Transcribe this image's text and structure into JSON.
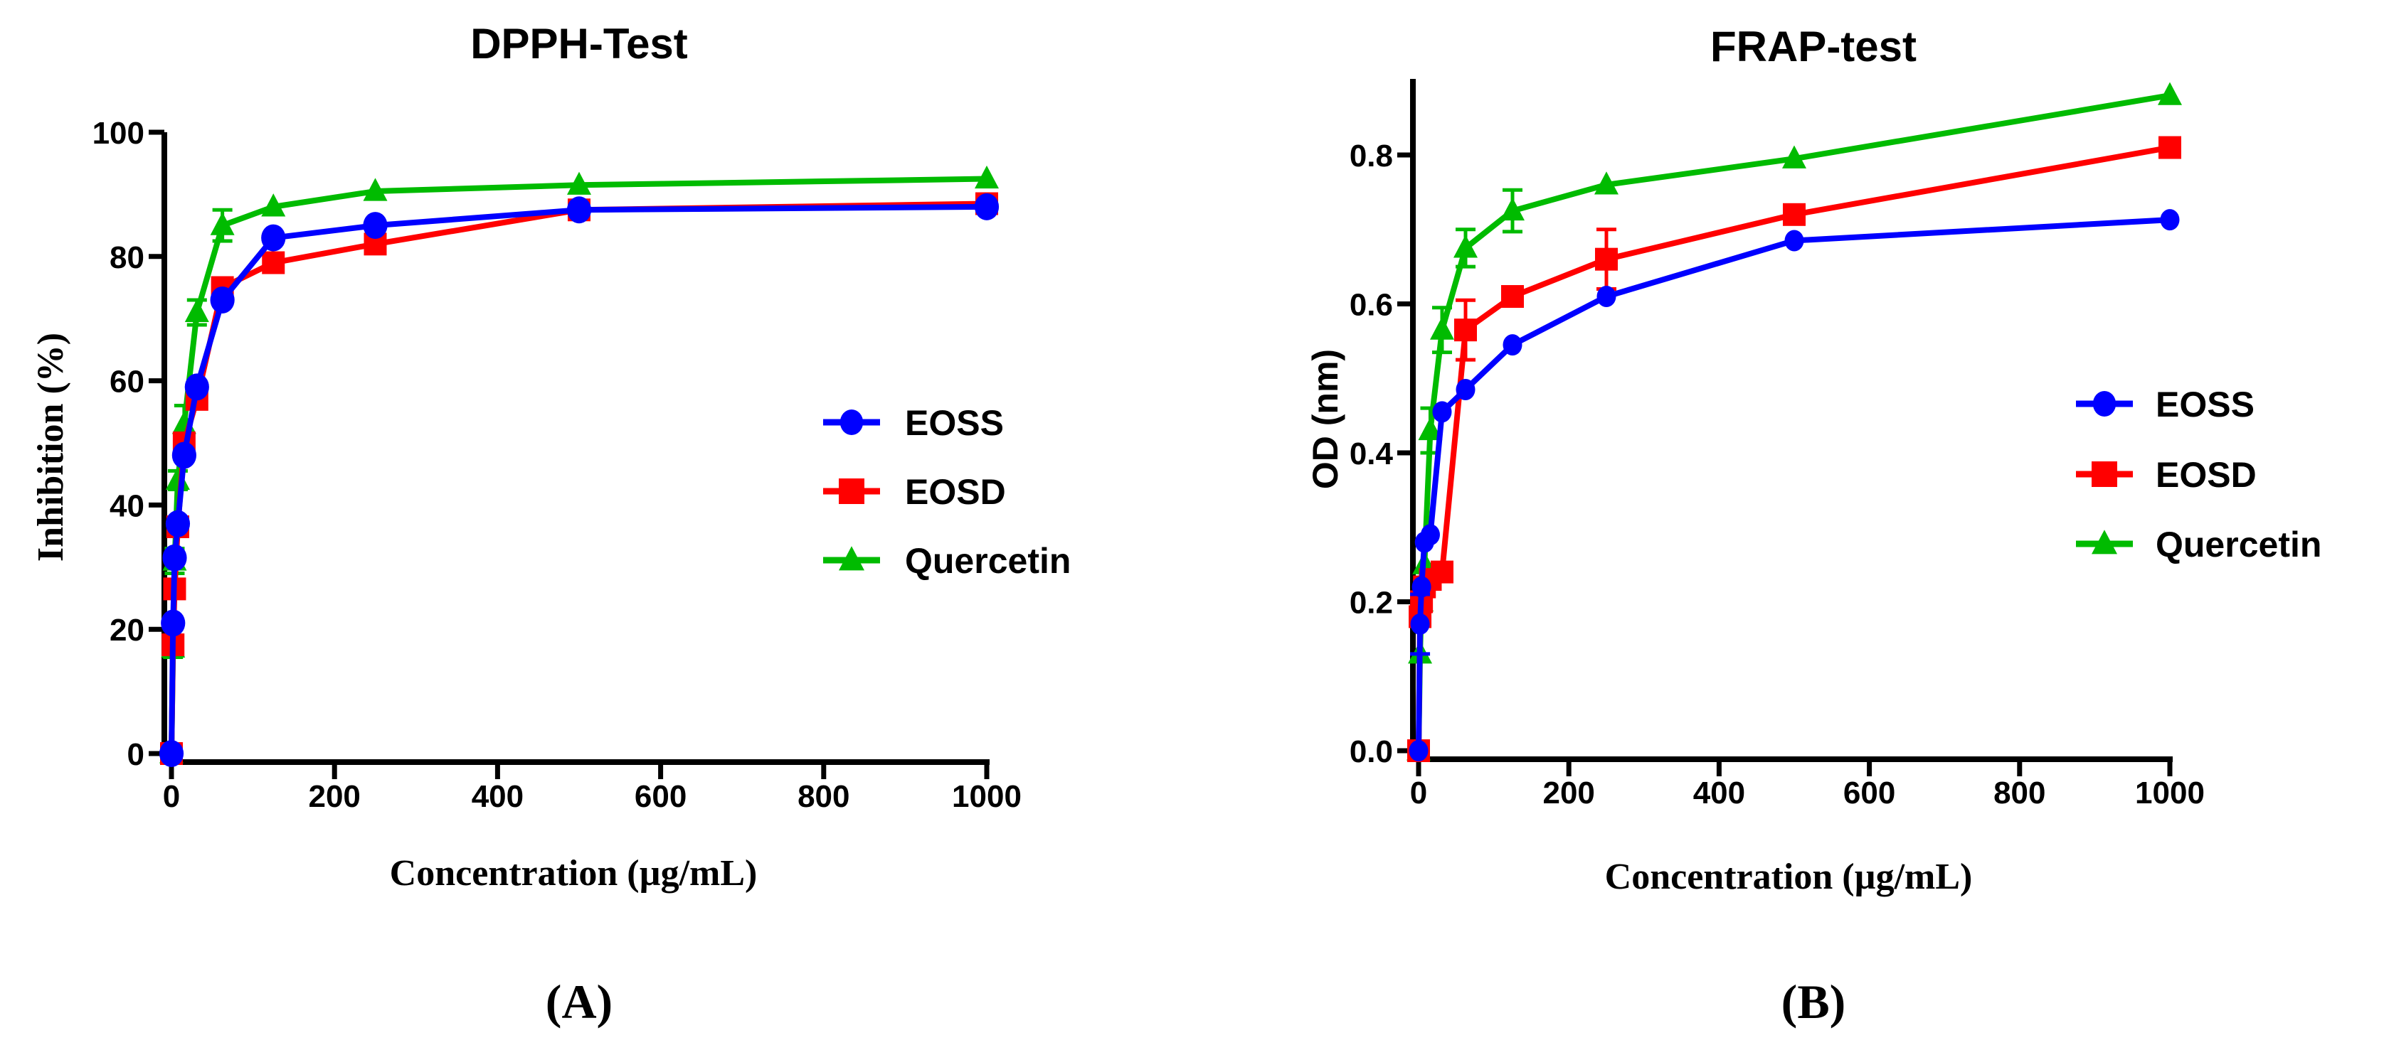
{
  "colors": {
    "EOSS": "#0000ff",
    "EOSD": "#ff0000",
    "Quercetin": "#00bb00",
    "axis": "#000000"
  },
  "chart_data": [
    {
      "type": "line",
      "panel_label": "(A)",
      "title": "DPPH-Test",
      "xlabel": "Concentration (µg/mL)",
      "ylabel": "Inhibition (%)",
      "xlim": [
        0,
        1000
      ],
      "ylim": [
        0,
        100
      ],
      "xticks": [
        0,
        200,
        400,
        600,
        800,
        1000
      ],
      "yticks": [
        0,
        20,
        40,
        60,
        80,
        100
      ],
      "grid": false,
      "legend_position": "center-right",
      "x": [
        0,
        1.95,
        3.9,
        7.8,
        15.6,
        31.25,
        62.5,
        125,
        250,
        500,
        1000
      ],
      "series": [
        {
          "name": "EOSS",
          "marker": "circle",
          "values": [
            0,
            21,
            31.5,
            37,
            48,
            59,
            73,
            83,
            85,
            87.5,
            88
          ]
        },
        {
          "name": "EOSD",
          "marker": "square",
          "values": [
            0,
            17.5,
            26.5,
            36.5,
            50,
            57,
            75,
            79,
            82,
            87.5,
            88.5
          ]
        },
        {
          "name": "Quercetin",
          "marker": "triangle",
          "values": [
            0,
            17,
            31,
            44,
            53,
            71,
            85,
            88,
            90.5,
            91.5,
            92.5
          ],
          "errors": [
            0,
            1.5,
            2,
            1.5,
            3,
            2,
            2.5,
            0,
            0,
            0,
            0
          ]
        }
      ]
    },
    {
      "type": "line",
      "panel_label": "(B)",
      "title": "FRAP-test",
      "xlabel": "Concentration (µg/mL)",
      "ylabel": "OD (nm)",
      "xlim": [
        0,
        1000
      ],
      "ylim": [
        0,
        0.9
      ],
      "xticks": [
        0,
        200,
        400,
        600,
        800,
        1000
      ],
      "yticks": [
        0.0,
        0.2,
        0.4,
        0.6,
        0.8
      ],
      "ytick_labels": [
        "0.0",
        "0.2",
        "0.4",
        "0.6",
        "0.8"
      ],
      "grid": false,
      "legend_position": "center-right",
      "x": [
        0,
        1.95,
        3.9,
        7.8,
        15.6,
        31.25,
        62.5,
        125,
        250,
        500,
        1000
      ],
      "series": [
        {
          "name": "EOSS",
          "marker": "circle",
          "values": [
            0,
            0.17,
            0.22,
            0.28,
            0.29,
            0.455,
            0.485,
            0.545,
            0.61,
            0.685,
            0.713
          ],
          "errors": [
            0,
            0.04,
            0,
            0,
            0,
            0,
            0,
            0,
            0,
            0,
            0
          ]
        },
        {
          "name": "EOSD",
          "marker": "square",
          "values": [
            0,
            0.18,
            0.2,
            0.22,
            0.23,
            0.24,
            0.565,
            0.61,
            0.66,
            0.72,
            0.81
          ],
          "errors": [
            0,
            0,
            0,
            0,
            0,
            0,
            0.04,
            0,
            0.04,
            0,
            0
          ]
        },
        {
          "name": "Quercetin",
          "marker": "triangle",
          "values": [
            0,
            0.13,
            0.2,
            0.25,
            0.43,
            0.565,
            0.675,
            0.725,
            0.76,
            0.795,
            0.88
          ],
          "errors": [
            0,
            0,
            0,
            0,
            0.03,
            0.03,
            0.025,
            0.028,
            0,
            0,
            0
          ]
        }
      ]
    }
  ]
}
